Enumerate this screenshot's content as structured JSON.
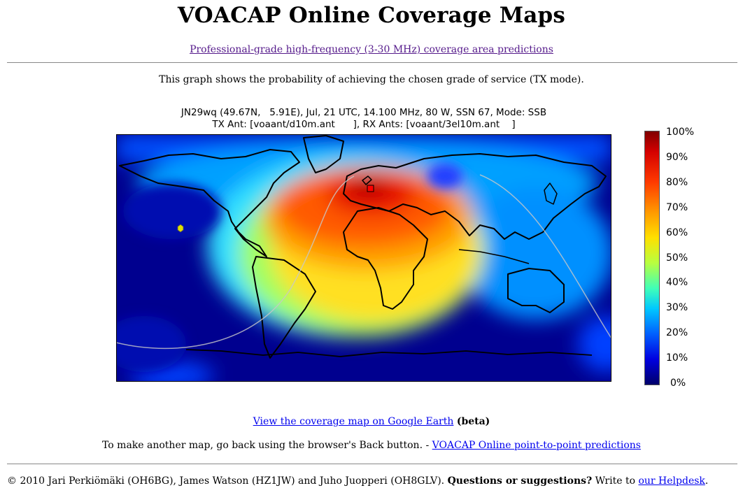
{
  "page": {
    "title": "VOACAP Online Coverage Maps",
    "subtitle_link": "Professional-grade high-frequency (3-30 MHz) coverage area predictions",
    "description": "This graph shows the probability of achieving the chosen grade of service (TX mode)."
  },
  "map": {
    "header_line1": "JN29wq (49.67N,   5.91E), Jul, 21 UTC, 14.100 MHz, 80 W, SSN 67, Mode: SSB",
    "header_line2": "TX Ant: [voaant/d10m.ant      ], RX Ants: [voaant/3el10m.ant    ]",
    "colorbar_ticks": [
      "100%",
      "90%",
      "80%",
      "70%",
      "60%",
      "50%",
      "40%",
      "30%",
      "20%",
      "10%",
      "0%"
    ],
    "tx_location": {
      "lat": 49.67,
      "lon": 5.91
    },
    "colors": {
      "ocean_low": "#00008f",
      "high": "#800000",
      "tx_marker": "#ff0000",
      "antipode_marker": "#e0e000"
    }
  },
  "links": {
    "google_earth": "View the coverage map on Google Earth",
    "beta": "(beta)",
    "another_text": "To make another map, go back using the browser's Back button. - ",
    "p2p": "VOACAP Online point-to-point predictions"
  },
  "footer": {
    "credits": "© 2010 Jari Perkiömäki (OH6BG), James Watson (HZ1JW) and Juho Juopperi (OH8GLV). ",
    "question": "Questions or suggestions?",
    "write_to": " Write to ",
    "helpdesk": "our Helpdesk",
    "end": "."
  }
}
